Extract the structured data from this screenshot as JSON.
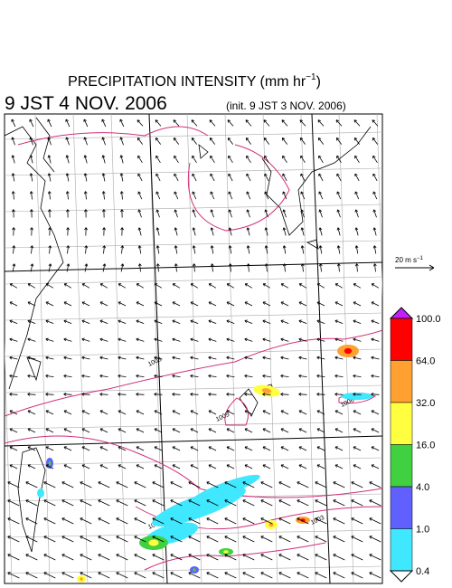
{
  "header": {
    "title": "PRECIPITATION INTENSITY (mm hr",
    "title_sup": "−1",
    "title_end": ")",
    "valid": "9 JST 4 NOV. 2006",
    "init": "(init. 9 JST 3 NOV. 2006)"
  },
  "reference_vector": {
    "label": "20 m s",
    "sup": "−1"
  },
  "isobars": [
    "1008",
    "1005",
    "1006",
    "1004",
    "1003"
  ],
  "colorbar": {
    "labels": [
      "100.0",
      "64.0",
      "32.0",
      "16.0",
      "4.0",
      "1.0",
      "0.4"
    ],
    "colors": [
      "#ff0000",
      "#ffa030",
      "#ffff40",
      "#40d040",
      "#6060ff",
      "#40e8ff"
    ],
    "over_color": "#c020ff",
    "under_color": "#ffffff"
  }
}
